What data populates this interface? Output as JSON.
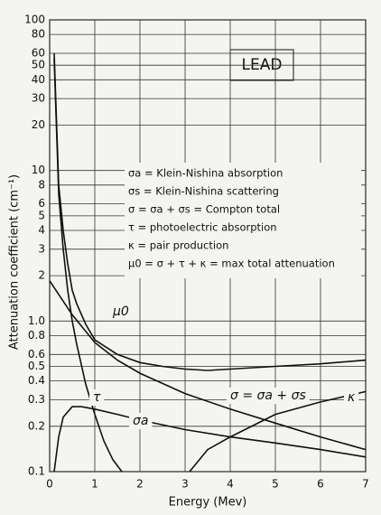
{
  "chart_data": {
    "type": "line",
    "title": "LEAD",
    "x_label": "Energy (Mev)",
    "y_label": "Attenuation coefficient (cm⁻¹)",
    "xlim": [
      0,
      7
    ],
    "xticks": [
      0,
      1,
      2,
      3,
      4,
      5,
      6,
      7
    ],
    "ylim": [
      0.1,
      100
    ],
    "log_y": true,
    "grid": true,
    "yticks": [
      100,
      80,
      60,
      50,
      40,
      30,
      20,
      10,
      8,
      6,
      5,
      4,
      3,
      2,
      {
        "value": 1,
        "label": "1.0"
      },
      0.8,
      0.6,
      0.5,
      0.4,
      0.3,
      0.2,
      0.1
    ],
    "series": [
      {
        "name": "μ0",
        "color": "#111111",
        "x": [
          0.1,
          0.2,
          0.3,
          0.4,
          0.5,
          0.6,
          0.8,
          1,
          1.5,
          2,
          2.5,
          3,
          3.5,
          4,
          5,
          6,
          7
        ],
        "values": [
          60,
          8,
          4,
          2.4,
          1.6,
          1.3,
          0.95,
          0.75,
          0.6,
          0.53,
          0.5,
          0.48,
          0.47,
          0.48,
          0.5,
          0.52,
          0.55
        ]
      },
      {
        "name": "τ",
        "color": "#111111",
        "x": [
          0.1,
          0.2,
          0.3,
          0.4,
          0.5,
          0.6,
          0.8,
          1,
          1.2,
          1.4,
          1.6
        ],
        "values": [
          55,
          7,
          3,
          1.6,
          1.0,
          0.7,
          0.38,
          0.24,
          0.16,
          0.12,
          0.1
        ]
      },
      {
        "name": "σ = σa + σs",
        "color": "#111111",
        "x": [
          0,
          0.5,
          1,
          1.5,
          2,
          3,
          4,
          5,
          6,
          7
        ],
        "values": [
          1.85,
          1.1,
          0.72,
          0.55,
          0.45,
          0.33,
          0.26,
          0.21,
          0.17,
          0.14
        ]
      },
      {
        "name": "σa",
        "color": "#111111",
        "x": [
          0.1,
          0.2,
          0.3,
          0.5,
          0.7,
          1,
          1.5,
          2,
          3,
          4,
          5,
          6,
          7
        ],
        "values": [
          0.1,
          0.17,
          0.23,
          0.27,
          0.27,
          0.26,
          0.24,
          0.22,
          0.19,
          0.17,
          0.155,
          0.14,
          0.125
        ]
      },
      {
        "name": "κ",
        "color": "#111111",
        "x": [
          3.1,
          3.5,
          4,
          5,
          6,
          7
        ],
        "values": [
          0.1,
          0.14,
          0.17,
          0.24,
          0.29,
          0.34
        ]
      }
    ],
    "key": [
      "σa = Klein-Nishina absorption",
      "σs = Klein-Nishina scattering",
      "σ = σa + σs = Compton total",
      "τ = photoelectric absorption",
      "κ = pair production",
      "μ0 = σ + τ + κ = max total attenuation"
    ]
  }
}
